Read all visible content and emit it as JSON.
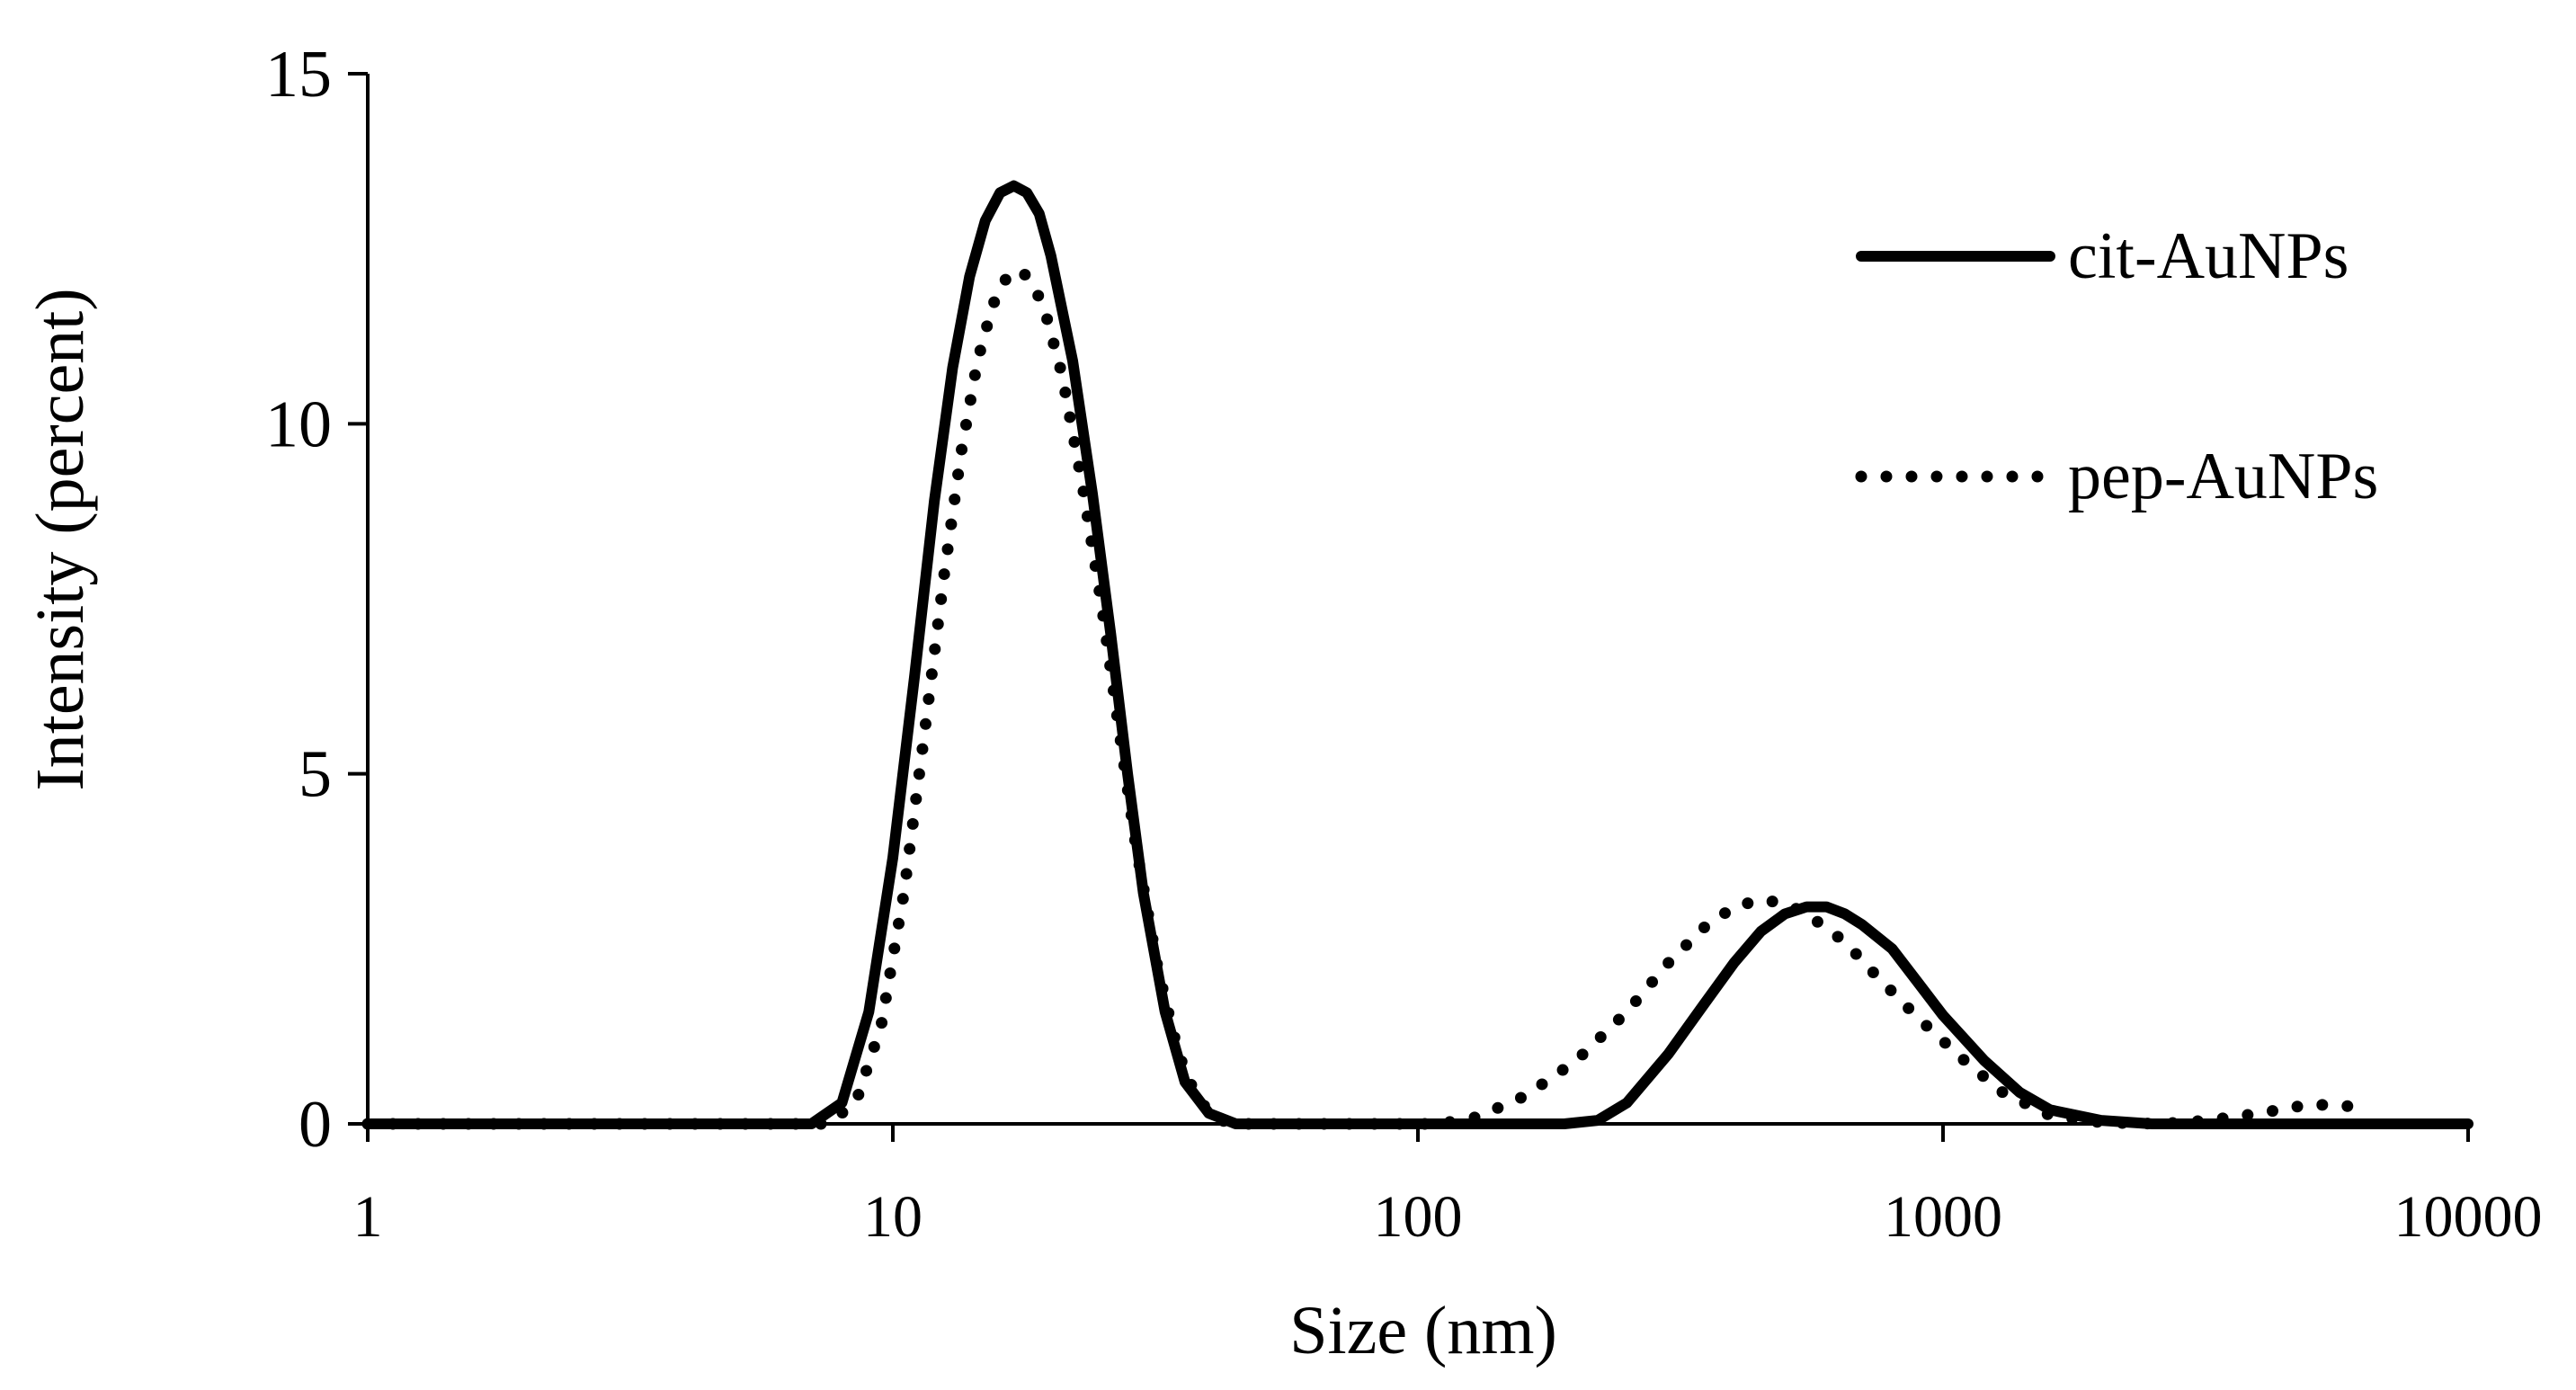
{
  "chart_data": {
    "type": "line",
    "xlabel": "Size (nm)",
    "ylabel": "Intensity (percent)",
    "x_scale": "log",
    "xlim": [
      1,
      10000
    ],
    "ylim": [
      0,
      15
    ],
    "x_ticks": [
      "1",
      "10",
      "100",
      "1000",
      "10000"
    ],
    "y_ticks": [
      "0",
      "5",
      "10",
      "15"
    ],
    "grid": false,
    "legend": {
      "position": "top-right"
    },
    "series": [
      {
        "name": "cit-AuNPs",
        "line_style": "solid",
        "color": "#000000",
        "points": [
          [
            1,
            0
          ],
          [
            7,
            0
          ],
          [
            8,
            0.3
          ],
          [
            9,
            1.6
          ],
          [
            10,
            3.8
          ],
          [
            11,
            6.4
          ],
          [
            12,
            8.9
          ],
          [
            13,
            10.8
          ],
          [
            14,
            12.1
          ],
          [
            15,
            12.9
          ],
          [
            16,
            13.3
          ],
          [
            17,
            13.4
          ],
          [
            18,
            13.3
          ],
          [
            19,
            13.0
          ],
          [
            20,
            12.4
          ],
          [
            22,
            10.9
          ],
          [
            24,
            9.0
          ],
          [
            26,
            7.0
          ],
          [
            28,
            5.0
          ],
          [
            30,
            3.3
          ],
          [
            33,
            1.6
          ],
          [
            36,
            0.6
          ],
          [
            40,
            0.15
          ],
          [
            45,
            0
          ],
          [
            190,
            0
          ],
          [
            220,
            0.05
          ],
          [
            250,
            0.3
          ],
          [
            300,
            1.0
          ],
          [
            350,
            1.7
          ],
          [
            400,
            2.3
          ],
          [
            450,
            2.75
          ],
          [
            500,
            3.0
          ],
          [
            550,
            3.1
          ],
          [
            600,
            3.1
          ],
          [
            650,
            3.0
          ],
          [
            700,
            2.85
          ],
          [
            800,
            2.5
          ],
          [
            900,
            2.0
          ],
          [
            1000,
            1.55
          ],
          [
            1200,
            0.9
          ],
          [
            1400,
            0.45
          ],
          [
            1600,
            0.2
          ],
          [
            2000,
            0.05
          ],
          [
            2500,
            0
          ],
          [
            10000,
            0
          ]
        ]
      },
      {
        "name": "pep-AuNPs",
        "line_style": "dotted",
        "color": "#000000",
        "points": [
          [
            1,
            0
          ],
          [
            7.5,
            0
          ],
          [
            8.5,
            0.3
          ],
          [
            9.5,
            1.4
          ],
          [
            10.5,
            3.3
          ],
          [
            11.5,
            5.6
          ],
          [
            12.5,
            7.8
          ],
          [
            13.5,
            9.6
          ],
          [
            14.5,
            10.9
          ],
          [
            15.5,
            11.7
          ],
          [
            16.5,
            12.1
          ],
          [
            17.5,
            12.2
          ],
          [
            18.5,
            12.0
          ],
          [
            19.5,
            11.6
          ],
          [
            21,
            10.7
          ],
          [
            23,
            9.1
          ],
          [
            25,
            7.4
          ],
          [
            27,
            5.6
          ],
          [
            29,
            4.0
          ],
          [
            32,
            2.2
          ],
          [
            35,
            1.0
          ],
          [
            38,
            0.35
          ],
          [
            42,
            0.05
          ],
          [
            46,
            0
          ],
          [
            110,
            0
          ],
          [
            130,
            0.1
          ],
          [
            160,
            0.4
          ],
          [
            200,
            0.9
          ],
          [
            250,
            1.6
          ],
          [
            300,
            2.3
          ],
          [
            350,
            2.8
          ],
          [
            400,
            3.1
          ],
          [
            450,
            3.2
          ],
          [
            500,
            3.15
          ],
          [
            550,
            3.0
          ],
          [
            650,
            2.6
          ],
          [
            750,
            2.1
          ],
          [
            900,
            1.5
          ],
          [
            1100,
            0.9
          ],
          [
            1300,
            0.45
          ],
          [
            1600,
            0.12
          ],
          [
            2000,
            0.02
          ],
          [
            2600,
            0
          ],
          [
            3200,
            0.05
          ],
          [
            4000,
            0.15
          ],
          [
            5000,
            0.28
          ],
          [
            6000,
            0.25
          ]
        ]
      }
    ]
  }
}
